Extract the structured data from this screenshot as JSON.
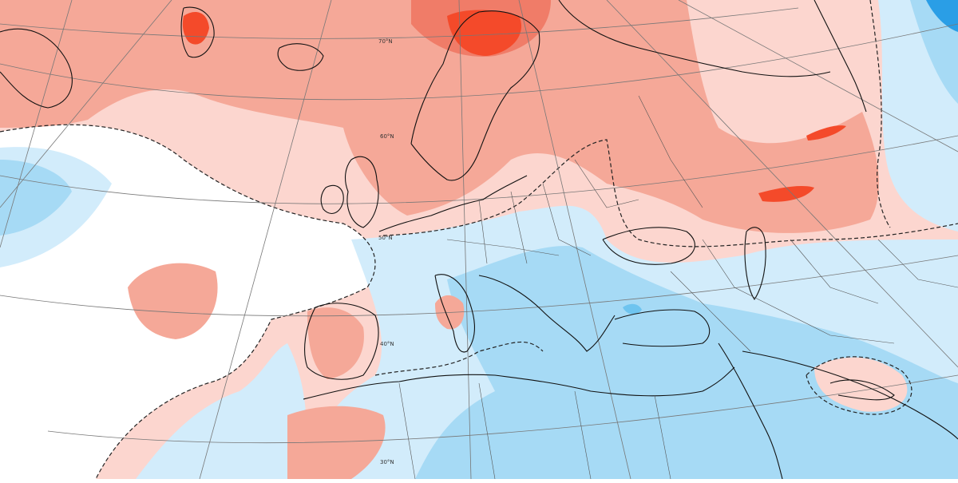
{
  "map": {
    "latitude_labels": [
      "70°N",
      "60°N",
      "50°N",
      "40°N",
      "30°N"
    ]
  },
  "colors": {
    "warm_1": "#fcd6cf",
    "warm_2": "#f5a898",
    "warm_3": "#f07c68",
    "warm_4": "#f44a2a",
    "neutral": "#ffffff",
    "cool_1": "#d2ecfb",
    "cool_2": "#a6daf5",
    "cool_3": "#6ec4ef",
    "cool_4": "#2a9ee6"
  }
}
